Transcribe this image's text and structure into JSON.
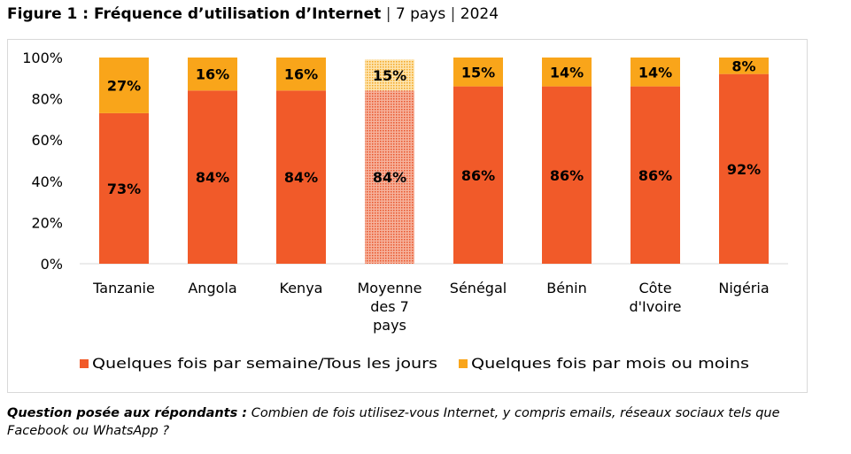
{
  "figure": {
    "label": "Figure 1 : Fréquence d’utilisation d’Internet",
    "sep1": " | ",
    "countries_count": "7 pays",
    "sep2": " | ",
    "year": "2024"
  },
  "colors": {
    "daily": "#F15A29",
    "monthly": "#F9A51A",
    "average_daily": "#F5A38A",
    "average_monthly": "#FBD88A",
    "axis": "#d9d9d9"
  },
  "chart_data": {
    "type": "bar",
    "stacked": true,
    "categories": [
      "Tanzanie",
      "Angola",
      "Kenya",
      "Moyenne des 7 pays",
      "Sénégal",
      "Bénin",
      "Côte d'Ivoire",
      "Nigéria"
    ],
    "category_lines": [
      [
        "Tanzanie"
      ],
      [
        "Angola"
      ],
      [
        "Kenya"
      ],
      [
        "Moyenne",
        "des 7",
        "pays"
      ],
      [
        "Sénégal"
      ],
      [
        "Bénin"
      ],
      [
        "Côte",
        "d'Ivoire"
      ],
      [
        "Nigéria"
      ]
    ],
    "series": [
      {
        "name": "Quelques fois par semaine/Tous les jours",
        "values": [
          73,
          84,
          84,
          84,
          86,
          86,
          86,
          92
        ],
        "labels": [
          "73%",
          "84%",
          "84%",
          "84%",
          "86%",
          "86%",
          "86%",
          "92%"
        ]
      },
      {
        "name": "Quelques fois par mois ou moins",
        "values": [
          27,
          16,
          16,
          15,
          15,
          14,
          14,
          8
        ],
        "labels": [
          "27%",
          "16%",
          "16%",
          "15%",
          "15%",
          "14%",
          "14%",
          "8%"
        ]
      }
    ],
    "highlighted_category": "Moyenne des 7 pays",
    "ylim": [
      0,
      100
    ],
    "yticks": [
      0,
      20,
      40,
      60,
      80,
      100
    ],
    "ytick_labels": [
      "0%",
      "20%",
      "40%",
      "60%",
      "80%",
      "100%"
    ],
    "legend_position": "bottom",
    "title": "",
    "xlabel": "",
    "ylabel": ""
  },
  "note": {
    "label": "Question posée aux répondants :",
    "text": " Combien de fois utilisez-vous Internet, y compris emails, réseaux sociaux tels que Facebook ou WhatsApp ?"
  }
}
